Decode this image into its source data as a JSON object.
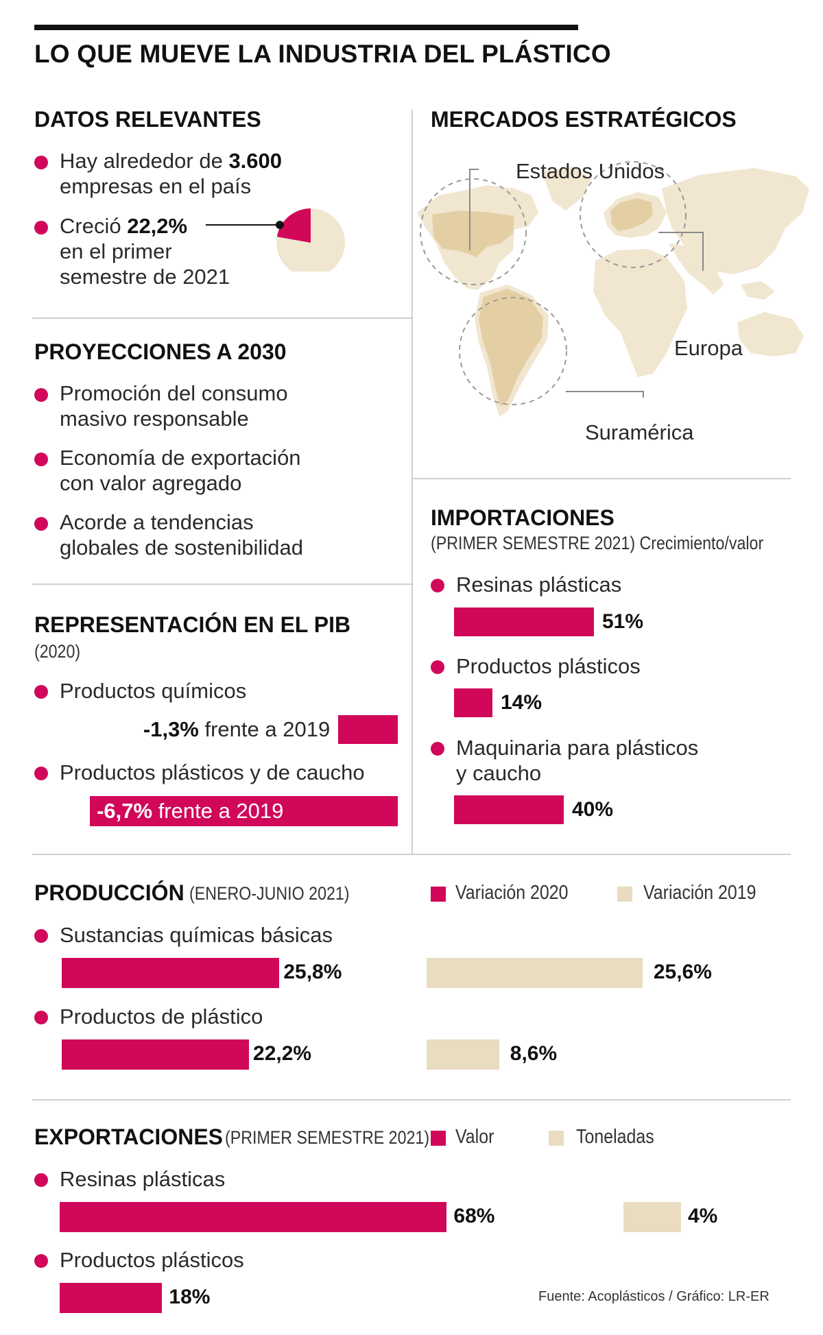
{
  "title": "LO QUE MUEVE LA INDUSTRIA DEL PLÁSTICO",
  "colors": {
    "magenta": "#d1085a",
    "beige": "#eadcc1",
    "land": "#f1e6d0"
  },
  "datos": {
    "heading": "DATOS RELEVANTES",
    "item1": {
      "pre": "Hay alrededor de ",
      "bold": "3.600",
      "line2": "empresas en el país"
    },
    "item2": {
      "pre": "Creció ",
      "bold": "22,2%",
      "line2": "en el primer",
      "line3": "semestre de 2021"
    },
    "pie_value_pct": 22.2
  },
  "mercados": {
    "heading": "MERCADOS ESTRATÉGICOS",
    "labels": [
      "Estados Unidos",
      "Europa",
      "Suramérica"
    ]
  },
  "proyecciones": {
    "heading": "PROYECCIONES A 2030",
    "items": [
      {
        "l1": "Promoción del consumo",
        "l2": "masivo responsable"
      },
      {
        "l1": "Economía de exportación",
        "l2": "con valor agregado"
      },
      {
        "l1": "Acorde a tendencias",
        "l2": "globales de sostenibilidad"
      }
    ]
  },
  "importaciones": {
    "heading": "IMPORTACIONES",
    "sub": "(PRIMER SEMESTRE 2021) Crecimiento/valor",
    "items": [
      {
        "label": "Resinas plásticas",
        "value_label": "51%"
      },
      {
        "label": "Productos plásticos",
        "value_label": "14%"
      },
      {
        "label_l1": "Maquinaria para plásticos",
        "label_l2": "y caucho",
        "value_label": "40%"
      }
    ]
  },
  "pib": {
    "heading": "REPRESENTACIÓN EN EL PIB",
    "sub": "(2020)",
    "items": [
      {
        "label": "Productos químicos",
        "bold": "-1,3%",
        "rest": " frente a 2019"
      },
      {
        "label": "Productos plásticos y de caucho",
        "bold": "-6,7%",
        "rest": " frente a 2019"
      }
    ]
  },
  "produccion": {
    "heading": "PRODUCCIÓN",
    "sub": "(ENERO-JUNIO 2021)",
    "legend": [
      "Variación 2020",
      "Variación 2019"
    ],
    "items": [
      {
        "label": "Sustancias químicas básicas",
        "v2020": "25,8%",
        "v2019": "25,6%"
      },
      {
        "label": "Productos de plástico",
        "v2020": "22,2%",
        "v2019": "8,6%"
      }
    ]
  },
  "exportaciones": {
    "heading": "EXPORTACIONES",
    "sub": "(PRIMER SEMESTRE 2021)",
    "legend": [
      "Valor",
      "Toneladas"
    ],
    "items": [
      {
        "label": "Resinas plásticas",
        "valor": "68%",
        "toneladas": "4%"
      },
      {
        "label": "Productos plásticos",
        "valor": "18%"
      }
    ]
  },
  "source": "Fuente: Acoplásticos / Gráfico: LR-ER",
  "chart_data": [
    {
      "type": "pie",
      "title": "DATOS RELEVANTES",
      "categories": [
        "Crecimiento primer semestre 2021"
      ],
      "values": [
        22.2
      ]
    },
    {
      "type": "bar",
      "title": "IMPORTACIONES",
      "subtitle": "(PRIMER SEMESTRE 2021) Crecimiento/valor",
      "categories": [
        "Resinas plásticas",
        "Productos plásticos",
        "Maquinaria para plásticos y caucho"
      ],
      "values": [
        51,
        14,
        40
      ]
    },
    {
      "type": "bar",
      "title": "REPRESENTACIÓN EN EL PIB",
      "subtitle": "(2020)",
      "categories": [
        "Productos químicos",
        "Productos plásticos y de caucho"
      ],
      "values": [
        -1.3,
        -6.7
      ]
    },
    {
      "type": "bar",
      "title": "PRODUCCIÓN",
      "subtitle": "(ENERO-JUNIO 2021)",
      "categories": [
        "Sustancias químicas básicas",
        "Productos de plástico"
      ],
      "series": [
        {
          "name": "Variación 2020",
          "values": [
            25.8,
            22.2
          ]
        },
        {
          "name": "Variación 2019",
          "values": [
            25.6,
            8.6
          ]
        }
      ]
    },
    {
      "type": "bar",
      "title": "EXPORTACIONES",
      "subtitle": "(PRIMER SEMESTRE 2021)",
      "categories": [
        "Resinas plásticas",
        "Productos plásticos"
      ],
      "series": [
        {
          "name": "Valor",
          "values": [
            68,
            18
          ]
        },
        {
          "name": "Toneladas",
          "values": [
            4,
            null
          ]
        }
      ]
    }
  ]
}
